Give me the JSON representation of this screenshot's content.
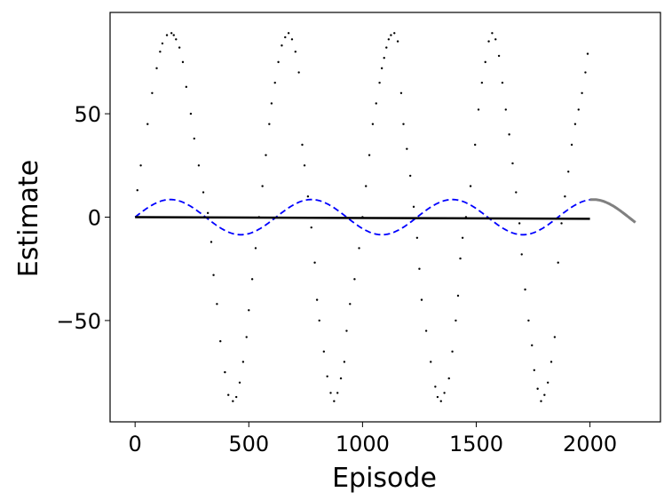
{
  "chart_data": {
    "type": "line",
    "title": "",
    "xlabel": "Episode",
    "ylabel": "Estimate",
    "xlim": [
      -110,
      2310
    ],
    "ylim": [
      -99,
      99
    ],
    "xticks": [
      0,
      500,
      1000,
      1500,
      2000
    ],
    "yticks": [
      -50,
      0,
      50
    ],
    "xtick_labels": [
      "0",
      "500",
      "1000",
      "1500",
      "2000"
    ],
    "ytick_labels": [
      "−50",
      "0",
      "50"
    ],
    "grid": false,
    "legend": null,
    "series": [
      {
        "style": "dots",
        "color": "#000000",
        "x": [
          10,
          25,
          55,
          75,
          95,
          110,
          120,
          140,
          160,
          170,
          180,
          195,
          210,
          225,
          245,
          260,
          280,
          300,
          320,
          335,
          345,
          360,
          375,
          395,
          410,
          430,
          445,
          460,
          475,
          490,
          500,
          515,
          530,
          545,
          560,
          575,
          590,
          600,
          615,
          630,
          645,
          660,
          675,
          690,
          705,
          720,
          735,
          745,
          760,
          775,
          790,
          800,
          810,
          830,
          845,
          860,
          875,
          890,
          905,
          920,
          930,
          945,
          965,
          985,
          1000,
          1015,
          1030,
          1045,
          1060,
          1075,
          1085,
          1095,
          1105,
          1115,
          1125,
          1140,
          1155,
          1170,
          1180,
          1195,
          1210,
          1225,
          1240,
          1250,
          1260,
          1280,
          1300,
          1320,
          1330,
          1345,
          1360,
          1380,
          1395,
          1410,
          1420,
          1430,
          1440,
          1455,
          1475,
          1495,
          1510,
          1525,
          1540,
          1555,
          1570,
          1585,
          1600,
          1615,
          1630,
          1645,
          1660,
          1675,
          1690,
          1700,
          1715,
          1730,
          1745,
          1755,
          1770,
          1785,
          1800,
          1815,
          1830,
          1845,
          1860,
          1875,
          1890,
          1905,
          1920,
          1935,
          1950,
          1965,
          1980,
          1990
        ],
        "y": [
          13,
          25,
          45,
          60,
          72,
          80,
          84,
          88,
          89,
          88,
          86,
          82,
          75,
          63,
          50,
          38,
          25,
          12,
          2,
          -12,
          -28,
          -42,
          -60,
          -75,
          -86,
          -89,
          -87,
          -80,
          -70,
          -58,
          -45,
          -30,
          -15,
          0,
          15,
          30,
          45,
          55,
          65,
          75,
          83,
          87,
          89,
          86,
          80,
          70,
          35,
          25,
          10,
          -5,
          -22,
          -40,
          -50,
          -65,
          -77,
          -85,
          -89,
          -85,
          -78,
          -70,
          -55,
          -42,
          -30,
          -15,
          0,
          15,
          30,
          45,
          55,
          65,
          72,
          77,
          82,
          86,
          88,
          89,
          85,
          60,
          45,
          33,
          20,
          5,
          -10,
          -25,
          -40,
          -55,
          -70,
          -82,
          -87,
          -89,
          -85,
          -78,
          -65,
          -50,
          -38,
          -20,
          -10,
          0,
          15,
          35,
          52,
          65,
          75,
          85,
          89,
          86,
          78,
          65,
          52,
          40,
          26,
          12,
          -3,
          -18,
          -35,
          -50,
          -62,
          -74,
          -83,
          -89,
          -86,
          -80,
          -70,
          -58,
          -22,
          -3,
          10,
          22,
          35,
          45,
          52,
          60,
          70,
          79
        ],
        "note_is_scatter": true
      },
      {
        "style": "dashed",
        "color": "#0000ff",
        "x_start": 0,
        "x_end": 2000,
        "amplitude": 8.5,
        "period": 620
      },
      {
        "style": "solid",
        "color": "#000000",
        "x": [
          0,
          2000
        ],
        "y": [
          0,
          -0.8
        ]
      },
      {
        "style": "solid",
        "color": "#808080",
        "x_start": 2000,
        "x_end": 2200,
        "amplitude": 8.5,
        "period": 620
      }
    ]
  }
}
